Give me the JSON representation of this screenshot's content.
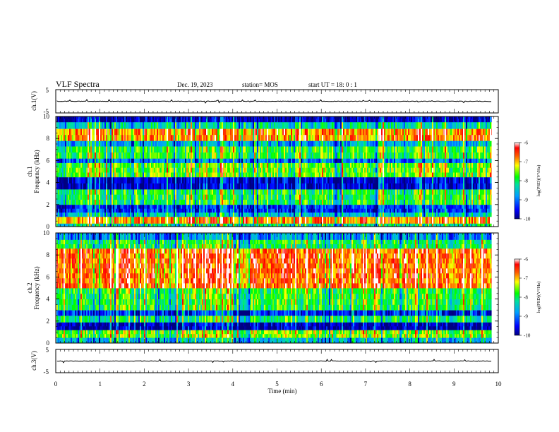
{
  "header": {
    "title": "VLF Spectra",
    "date": "Dec. 19, 2023",
    "station": "station= MOS",
    "start": "start  UT =   18: 0   : 1"
  },
  "colors": {
    "scale": [
      "#1a0a78",
      "#0000ff",
      "#00a0ff",
      "#00e0a0",
      "#00ff00",
      "#ffff00",
      "#ff6000",
      "#ff0000",
      "#ffffff"
    ],
    "panel_border": "#000000"
  },
  "chart_data": [
    {
      "type": "line",
      "panel": "waveform-ch1",
      "ylabel": "ch.1(V)",
      "ylim": [
        -5,
        5
      ],
      "yticks": [
        "5",
        "-5"
      ],
      "baseline": 0
    },
    {
      "type": "heatmap",
      "panel": "spectrogram-ch1",
      "ylabel_top": "ch.1",
      "ylabel": "Frequency (kHz)",
      "ylim": [
        0,
        10
      ],
      "yticks": [
        "0",
        "2",
        "4",
        "6",
        "8",
        "10"
      ],
      "xlim": [
        0,
        10
      ],
      "colorbar": {
        "label": "log(PSD)(V²/Hz)",
        "range": [
          -10,
          -6
        ],
        "ticks": [
          "-6",
          "-7",
          "-8",
          "-9",
          "-10"
        ]
      },
      "bands_khz": [
        {
          "from": 0.0,
          "to": 0.3,
          "level": -8.2
        },
        {
          "from": 0.3,
          "to": 0.9,
          "level": -6.8
        },
        {
          "from": 0.9,
          "to": 1.3,
          "level": -8.5
        },
        {
          "from": 1.3,
          "to": 2.0,
          "level": -9.3
        },
        {
          "from": 2.0,
          "to": 3.4,
          "level": -7.9
        },
        {
          "from": 3.4,
          "to": 4.5,
          "level": -9.6
        },
        {
          "from": 4.5,
          "to": 5.8,
          "level": -7.6
        },
        {
          "from": 5.8,
          "to": 6.2,
          "level": -9.0
        },
        {
          "from": 6.2,
          "to": 7.3,
          "level": -7.8
        },
        {
          "from": 7.3,
          "to": 7.8,
          "level": -8.6
        },
        {
          "from": 7.8,
          "to": 8.9,
          "level": -6.8
        },
        {
          "from": 8.9,
          "to": 9.5,
          "level": -8.3
        },
        {
          "from": 9.5,
          "to": 10.0,
          "level": -9.7
        }
      ]
    },
    {
      "type": "heatmap",
      "panel": "spectrogram-ch2",
      "ylabel_top": "ch.2",
      "ylabel": "Frequency (kHz)",
      "ylim": [
        0,
        10
      ],
      "yticks": [
        "0",
        "2",
        "4",
        "6",
        "8",
        "10"
      ],
      "xlim": [
        0,
        10
      ],
      "colorbar": {
        "label": "log(PSD)(V²/Hz)",
        "range": [
          -10,
          -6
        ],
        "ticks": [
          "-6",
          "-7",
          "-8",
          "-9",
          "-10"
        ]
      },
      "bands_khz": [
        {
          "from": 0.0,
          "to": 0.5,
          "level": -8.6
        },
        {
          "from": 0.5,
          "to": 1.2,
          "level": -7.6
        },
        {
          "from": 1.2,
          "to": 1.9,
          "level": -9.8
        },
        {
          "from": 1.9,
          "to": 2.5,
          "level": -8.1
        },
        {
          "from": 2.5,
          "to": 3.0,
          "level": -9.4
        },
        {
          "from": 3.0,
          "to": 5.0,
          "level": -7.9
        },
        {
          "from": 5.0,
          "to": 8.6,
          "level": -6.7
        },
        {
          "from": 8.6,
          "to": 9.4,
          "level": -8.0
        },
        {
          "from": 9.4,
          "to": 10.0,
          "level": -8.9
        }
      ]
    },
    {
      "type": "line",
      "panel": "waveform-ch2",
      "ylabel": "ch.3(V)",
      "ylim": [
        -5,
        5
      ],
      "yticks": [
        "5",
        "-5"
      ],
      "baseline": 0
    }
  ],
  "xaxis": {
    "label": "Time  (min)",
    "xlim": [
      0,
      10
    ],
    "ticks": [
      "0",
      "1",
      "2",
      "3",
      "4",
      "5",
      "6",
      "7",
      "8",
      "9",
      "10"
    ]
  }
}
